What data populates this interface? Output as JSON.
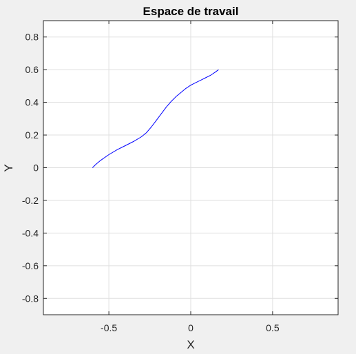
{
  "chart_data": {
    "type": "line",
    "title": "Espace de travail",
    "xlabel": "X",
    "ylabel": "Y",
    "xlim": [
      -0.9,
      0.9
    ],
    "ylim": [
      -0.9,
      0.9
    ],
    "grid": true,
    "xticks": [
      -0.5,
      0,
      0.5
    ],
    "xtick_labels": [
      "-0.5",
      "0",
      "0.5"
    ],
    "yticks": [
      0.8,
      0.6,
      0.4,
      0.2,
      0,
      -0.2,
      -0.4,
      -0.6,
      -0.8
    ],
    "ytick_labels": [
      "0.8",
      "0.6",
      "0.4",
      "0.2",
      "0",
      "-0.2",
      "-0.4",
      "-0.6",
      "-0.8"
    ],
    "series": [
      {
        "color": "#0000ff",
        "x": [
          -0.6,
          -0.58,
          -0.55,
          -0.5,
          -0.45,
          -0.4,
          -0.35,
          -0.3,
          -0.27,
          -0.24,
          -0.21,
          -0.18,
          -0.15,
          -0.12,
          -0.09,
          -0.06,
          -0.03,
          0,
          0.03,
          0.06,
          0.09,
          0.12,
          0.15,
          0.17
        ],
        "y": [
          0,
          0.02,
          0.045,
          0.08,
          0.11,
          0.135,
          0.16,
          0.19,
          0.215,
          0.25,
          0.29,
          0.33,
          0.37,
          0.405,
          0.435,
          0.46,
          0.485,
          0.505,
          0.52,
          0.535,
          0.55,
          0.565,
          0.585,
          0.6
        ]
      }
    ]
  }
}
